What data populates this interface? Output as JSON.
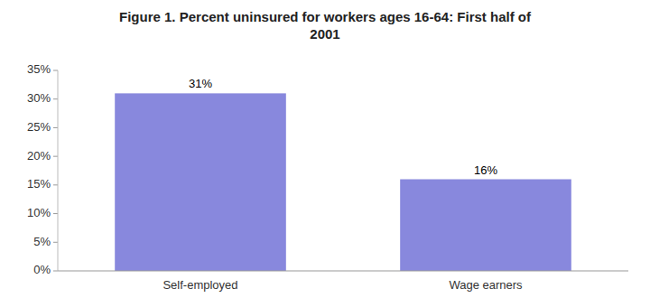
{
  "chart_data": {
    "type": "bar",
    "title": "Figure 1.  Percent uninsured for workers ages 16-64: First half of\n2001",
    "categories": [
      "Self-employed",
      "Wage earners"
    ],
    "values": [
      0.31,
      0.16
    ],
    "value_labels": [
      "31%",
      "16%"
    ],
    "data_labels": true,
    "color": "#8888DD",
    "ylim": [
      0,
      0.35
    ],
    "yticks": [
      {
        "value": 0,
        "label": "0%"
      },
      {
        "value": 0.05,
        "label": "5%"
      },
      {
        "value": 0.1,
        "label": "10%"
      },
      {
        "value": 0.15,
        "label": "15%"
      },
      {
        "value": 0.2,
        "label": "20%"
      },
      {
        "value": 0.25,
        "label": "25%"
      },
      {
        "value": 0.3,
        "label": "30%"
      },
      {
        "value": 0.35,
        "label": "35%"
      }
    ],
    "grid": false
  }
}
